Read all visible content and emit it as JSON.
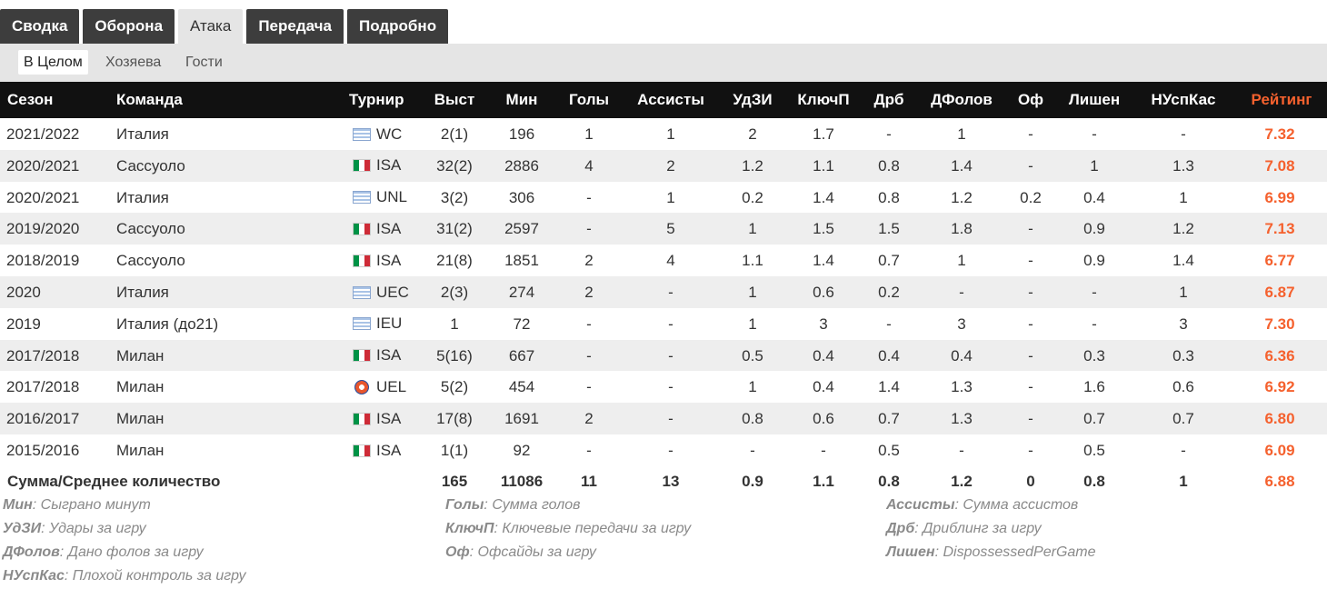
{
  "tabs": [
    "Сводка",
    "Оборона",
    "Атака",
    "Передача",
    "Подробно"
  ],
  "subtabs": [
    "В Целом",
    "Хозяева",
    "Гости"
  ],
  "headers": {
    "season": "Сезон",
    "team": "Команда",
    "tournament": "Турнир",
    "apps": "Выст",
    "mins": "Мин",
    "goals": "Голы",
    "assists": "Ассисты",
    "shots": "УдЗИ",
    "keypasses": "КлючП",
    "dribbles": "Дрб",
    "fouled": "ДФолов",
    "offsides": "Оф",
    "dispossessed": "Лишен",
    "badcontrol": "НУспКас",
    "rating": "Рейтинг"
  },
  "rows": [
    {
      "season": "2021/2022",
      "team": "Италия",
      "flag": "intl",
      "tournament": "WC",
      "apps": "2(1)",
      "mins": "196",
      "goals": "1",
      "assists": "1",
      "shots": "2",
      "keypasses": "1.7",
      "dribbles": "-",
      "fouled": "1",
      "offsides": "-",
      "dispossessed": "-",
      "badcontrol": "-",
      "rating": "7.32"
    },
    {
      "season": "2020/2021",
      "team": "Сассуоло",
      "flag": "italy",
      "tournament": "ISA",
      "apps": "32(2)",
      "mins": "2886",
      "goals": "4",
      "assists": "2",
      "shots": "1.2",
      "keypasses": "1.1",
      "dribbles": "0.8",
      "fouled": "1.4",
      "offsides": "-",
      "dispossessed": "1",
      "badcontrol": "1.3",
      "rating": "7.08"
    },
    {
      "season": "2020/2021",
      "team": "Италия",
      "flag": "intl",
      "tournament": "UNL",
      "apps": "3(2)",
      "mins": "306",
      "goals": "-",
      "assists": "1",
      "shots": "0.2",
      "keypasses": "1.4",
      "dribbles": "0.8",
      "fouled": "1.2",
      "offsides": "0.2",
      "dispossessed": "0.4",
      "badcontrol": "1",
      "rating": "6.99"
    },
    {
      "season": "2019/2020",
      "team": "Сассуоло",
      "flag": "italy",
      "tournament": "ISA",
      "apps": "31(2)",
      "mins": "2597",
      "goals": "-",
      "assists": "5",
      "shots": "1",
      "keypasses": "1.5",
      "dribbles": "1.5",
      "fouled": "1.8",
      "offsides": "-",
      "dispossessed": "0.9",
      "badcontrol": "1.2",
      "rating": "7.13"
    },
    {
      "season": "2018/2019",
      "team": "Сассуоло",
      "flag": "italy",
      "tournament": "ISA",
      "apps": "21(8)",
      "mins": "1851",
      "goals": "2",
      "assists": "4",
      "shots": "1.1",
      "keypasses": "1.4",
      "dribbles": "0.7",
      "fouled": "1",
      "offsides": "-",
      "dispossessed": "0.9",
      "badcontrol": "1.4",
      "rating": "6.77"
    },
    {
      "season": "2020",
      "team": "Италия",
      "flag": "intl",
      "tournament": "UEC",
      "apps": "2(3)",
      "mins": "274",
      "goals": "2",
      "assists": "-",
      "shots": "1",
      "keypasses": "0.6",
      "dribbles": "0.2",
      "fouled": "-",
      "offsides": "-",
      "dispossessed": "-",
      "badcontrol": "1",
      "rating": "6.87"
    },
    {
      "season": "2019",
      "team": "Италия (до21)",
      "flag": "intl",
      "tournament": "IEU",
      "apps": "1",
      "mins": "72",
      "goals": "-",
      "assists": "-",
      "shots": "1",
      "keypasses": "3",
      "dribbles": "-",
      "fouled": "3",
      "offsides": "-",
      "dispossessed": "-",
      "badcontrol": "3",
      "rating": "7.30"
    },
    {
      "season": "2017/2018",
      "team": "Милан",
      "flag": "italy",
      "tournament": "ISA",
      "apps": "5(16)",
      "mins": "667",
      "goals": "-",
      "assists": "-",
      "shots": "0.5",
      "keypasses": "0.4",
      "dribbles": "0.4",
      "fouled": "0.4",
      "offsides": "-",
      "dispossessed": "0.3",
      "badcontrol": "0.3",
      "rating": "6.36"
    },
    {
      "season": "2017/2018",
      "team": "Милан",
      "flag": "uel",
      "tournament": "UEL",
      "apps": "5(2)",
      "mins": "454",
      "goals": "-",
      "assists": "-",
      "shots": "1",
      "keypasses": "0.4",
      "dribbles": "1.4",
      "fouled": "1.3",
      "offsides": "-",
      "dispossessed": "1.6",
      "badcontrol": "0.6",
      "rating": "6.92"
    },
    {
      "season": "2016/2017",
      "team": "Милан",
      "flag": "italy",
      "tournament": "ISA",
      "apps": "17(8)",
      "mins": "1691",
      "goals": "2",
      "assists": "-",
      "shots": "0.8",
      "keypasses": "0.6",
      "dribbles": "0.7",
      "fouled": "1.3",
      "offsides": "-",
      "dispossessed": "0.7",
      "badcontrol": "0.7",
      "rating": "6.80"
    },
    {
      "season": "2015/2016",
      "team": "Милан",
      "flag": "italy",
      "tournament": "ISA",
      "apps": "1(1)",
      "mins": "92",
      "goals": "-",
      "assists": "-",
      "shots": "-",
      "keypasses": "-",
      "dribbles": "0.5",
      "fouled": "-",
      "offsides": "-",
      "dispossessed": "0.5",
      "badcontrol": "-",
      "rating": "6.09"
    }
  ],
  "totals": {
    "label": "Сумма/Среднее количество",
    "apps": "165",
    "mins": "11086",
    "goals": "11",
    "assists": "13",
    "shots": "0.9",
    "keypasses": "1.1",
    "dribbles": "0.8",
    "fouled": "1.2",
    "offsides": "0",
    "dispossessed": "0.8",
    "badcontrol": "1",
    "rating": "6.88"
  },
  "legend": [
    {
      "key": "Мин",
      "desc": "Сыграно минут"
    },
    {
      "key": "Голы",
      "desc": "Сумма голов"
    },
    {
      "key": "Ассисты",
      "desc": "Сумма ассистов"
    },
    {
      "key": "УдЗИ",
      "desc": "Удары за игру"
    },
    {
      "key": "КлючП",
      "desc": "Ключевые передачи за игру"
    },
    {
      "key": "Дрб",
      "desc": "Дриблинг за игру"
    },
    {
      "key": "ДФолов",
      "desc": "Дано фолов за игру"
    },
    {
      "key": "Оф",
      "desc": "Офсайды за игру"
    },
    {
      "key": "Лишен",
      "desc": "DispossessedPerGame"
    },
    {
      "key": "НУспКас",
      "desc": "Плохой контроль за игру"
    }
  ],
  "colors": {
    "header_bg": "#111111",
    "tab_bg": "#3d3d3d",
    "rating_accent": "#f5612e",
    "stripe": "#eeeeee"
  }
}
